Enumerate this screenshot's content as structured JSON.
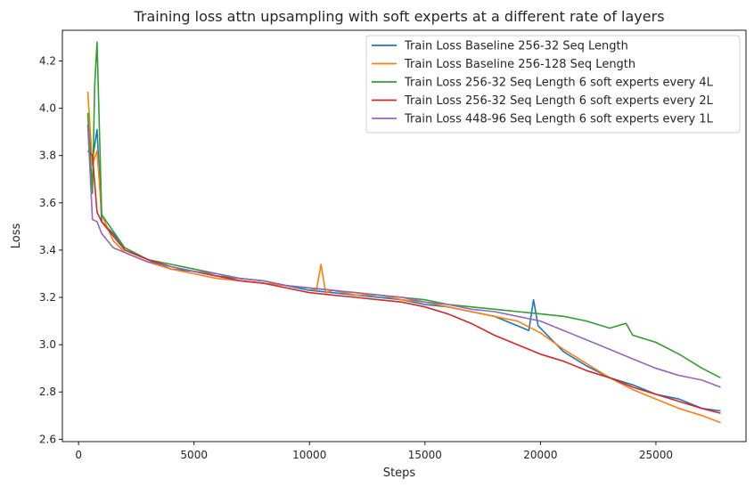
{
  "chart_data": {
    "type": "line",
    "title": "Training loss attn upsampling with soft experts at a different rate of layers",
    "xlabel": "Steps",
    "ylabel": "Loss",
    "xlim": [
      -700,
      28900
    ],
    "ylim": [
      2.59,
      4.33
    ],
    "xticks": [
      0,
      5000,
      10000,
      15000,
      20000,
      25000
    ],
    "yticks": [
      2.6,
      2.8,
      3.0,
      3.2,
      3.4,
      3.6,
      3.8,
      4.0,
      4.2
    ],
    "ytick_labels": [
      "2.6",
      "2.8",
      "3.0",
      "3.2",
      "3.4",
      "3.6",
      "3.8",
      "4.0",
      "4.2"
    ],
    "grid": false,
    "legend_position": "top-right",
    "series": [
      {
        "name": "Train Loss Baseline 256-32 Seq Length",
        "color": "#1f77b4",
        "x": [
          400,
          600,
          800,
          1000,
          1500,
          2000,
          3000,
          4000,
          5000,
          6000,
          7000,
          8000,
          9000,
          10000,
          11000,
          12000,
          13000,
          14000,
          15000,
          16000,
          17000,
          18000,
          19000,
          19500,
          19700,
          19900,
          20500,
          21000,
          22000,
          23000,
          24000,
          25000,
          26000,
          27000,
          27800
        ],
        "y": [
          3.93,
          3.78,
          3.91,
          3.52,
          3.47,
          3.41,
          3.36,
          3.32,
          3.31,
          3.29,
          3.28,
          3.27,
          3.25,
          3.23,
          3.22,
          3.21,
          3.2,
          3.19,
          3.17,
          3.16,
          3.14,
          3.12,
          3.08,
          3.06,
          3.19,
          3.08,
          3.02,
          2.97,
          2.91,
          2.86,
          2.83,
          2.79,
          2.77,
          2.73,
          2.72
        ]
      },
      {
        "name": "Train Loss Baseline 256-128 Seq Length",
        "color": "#ff7f0e",
        "x": [
          400,
          600,
          800,
          1000,
          1500,
          2000,
          3000,
          4000,
          5000,
          6000,
          7000,
          8000,
          9000,
          10000,
          10300,
          10500,
          10700,
          11000,
          12000,
          13000,
          14000,
          15000,
          16000,
          17000,
          18000,
          19000,
          20000,
          21000,
          22000,
          23000,
          24000,
          25000,
          26000,
          27000,
          27800
        ],
        "y": [
          4.07,
          3.76,
          3.82,
          3.55,
          3.44,
          3.39,
          3.35,
          3.32,
          3.3,
          3.28,
          3.27,
          3.26,
          3.25,
          3.24,
          3.23,
          3.34,
          3.22,
          3.23,
          3.21,
          3.21,
          3.19,
          3.18,
          3.16,
          3.14,
          3.12,
          3.1,
          3.05,
          2.98,
          2.92,
          2.86,
          2.81,
          2.77,
          2.73,
          2.7,
          2.67
        ]
      },
      {
        "name": "Train Loss 256-32 Seq Length 6 soft experts every 4L",
        "color": "#2ca02c",
        "x": [
          400,
          600,
          700,
          800,
          1000,
          1500,
          2000,
          3000,
          4000,
          5000,
          6000,
          7000,
          8000,
          9000,
          10000,
          11000,
          12000,
          13000,
          14000,
          15000,
          16000,
          17000,
          18000,
          19000,
          20000,
          21000,
          22000,
          23000,
          23700,
          24000,
          25000,
          26000,
          27000,
          27800
        ],
        "y": [
          3.98,
          3.64,
          4.1,
          4.28,
          3.55,
          3.48,
          3.41,
          3.36,
          3.34,
          3.32,
          3.3,
          3.28,
          3.27,
          3.25,
          3.24,
          3.23,
          3.22,
          3.21,
          3.2,
          3.19,
          3.17,
          3.16,
          3.15,
          3.14,
          3.13,
          3.12,
          3.1,
          3.07,
          3.09,
          3.04,
          3.01,
          2.96,
          2.9,
          2.86
        ]
      },
      {
        "name": "Train Loss 256-32 Seq Length 6 soft experts every 2L",
        "color": "#d62728",
        "x": [
          400,
          600,
          800,
          1000,
          1500,
          2000,
          3000,
          4000,
          5000,
          6000,
          7000,
          8000,
          9000,
          10000,
          11000,
          12000,
          13000,
          14000,
          15000,
          16000,
          17000,
          18000,
          19000,
          20000,
          21000,
          22000,
          23000,
          24000,
          25000,
          26000,
          27000,
          27800
        ],
        "y": [
          3.82,
          3.8,
          3.56,
          3.52,
          3.46,
          3.4,
          3.36,
          3.33,
          3.31,
          3.29,
          3.27,
          3.26,
          3.24,
          3.22,
          3.21,
          3.2,
          3.19,
          3.18,
          3.16,
          3.13,
          3.09,
          3.04,
          3.0,
          2.96,
          2.93,
          2.89,
          2.86,
          2.82,
          2.79,
          2.76,
          2.73,
          2.71
        ]
      },
      {
        "name": "Train Loss 448-96 Seq Length 6 soft experts every 1L",
        "color": "#9467bd",
        "x": [
          400,
          600,
          800,
          1000,
          1500,
          2000,
          3000,
          4000,
          5000,
          6000,
          7000,
          8000,
          9000,
          10000,
          11000,
          12000,
          13000,
          14000,
          15000,
          16000,
          17000,
          18000,
          19000,
          20000,
          21000,
          22000,
          23000,
          24000,
          25000,
          26000,
          27000,
          27800
        ],
        "y": [
          3.93,
          3.53,
          3.52,
          3.47,
          3.41,
          3.39,
          3.35,
          3.33,
          3.31,
          3.3,
          3.28,
          3.27,
          3.25,
          3.24,
          3.23,
          3.22,
          3.21,
          3.2,
          3.18,
          3.17,
          3.15,
          3.14,
          3.12,
          3.1,
          3.06,
          3.02,
          2.98,
          2.94,
          2.9,
          2.87,
          2.85,
          2.82
        ]
      }
    ]
  }
}
